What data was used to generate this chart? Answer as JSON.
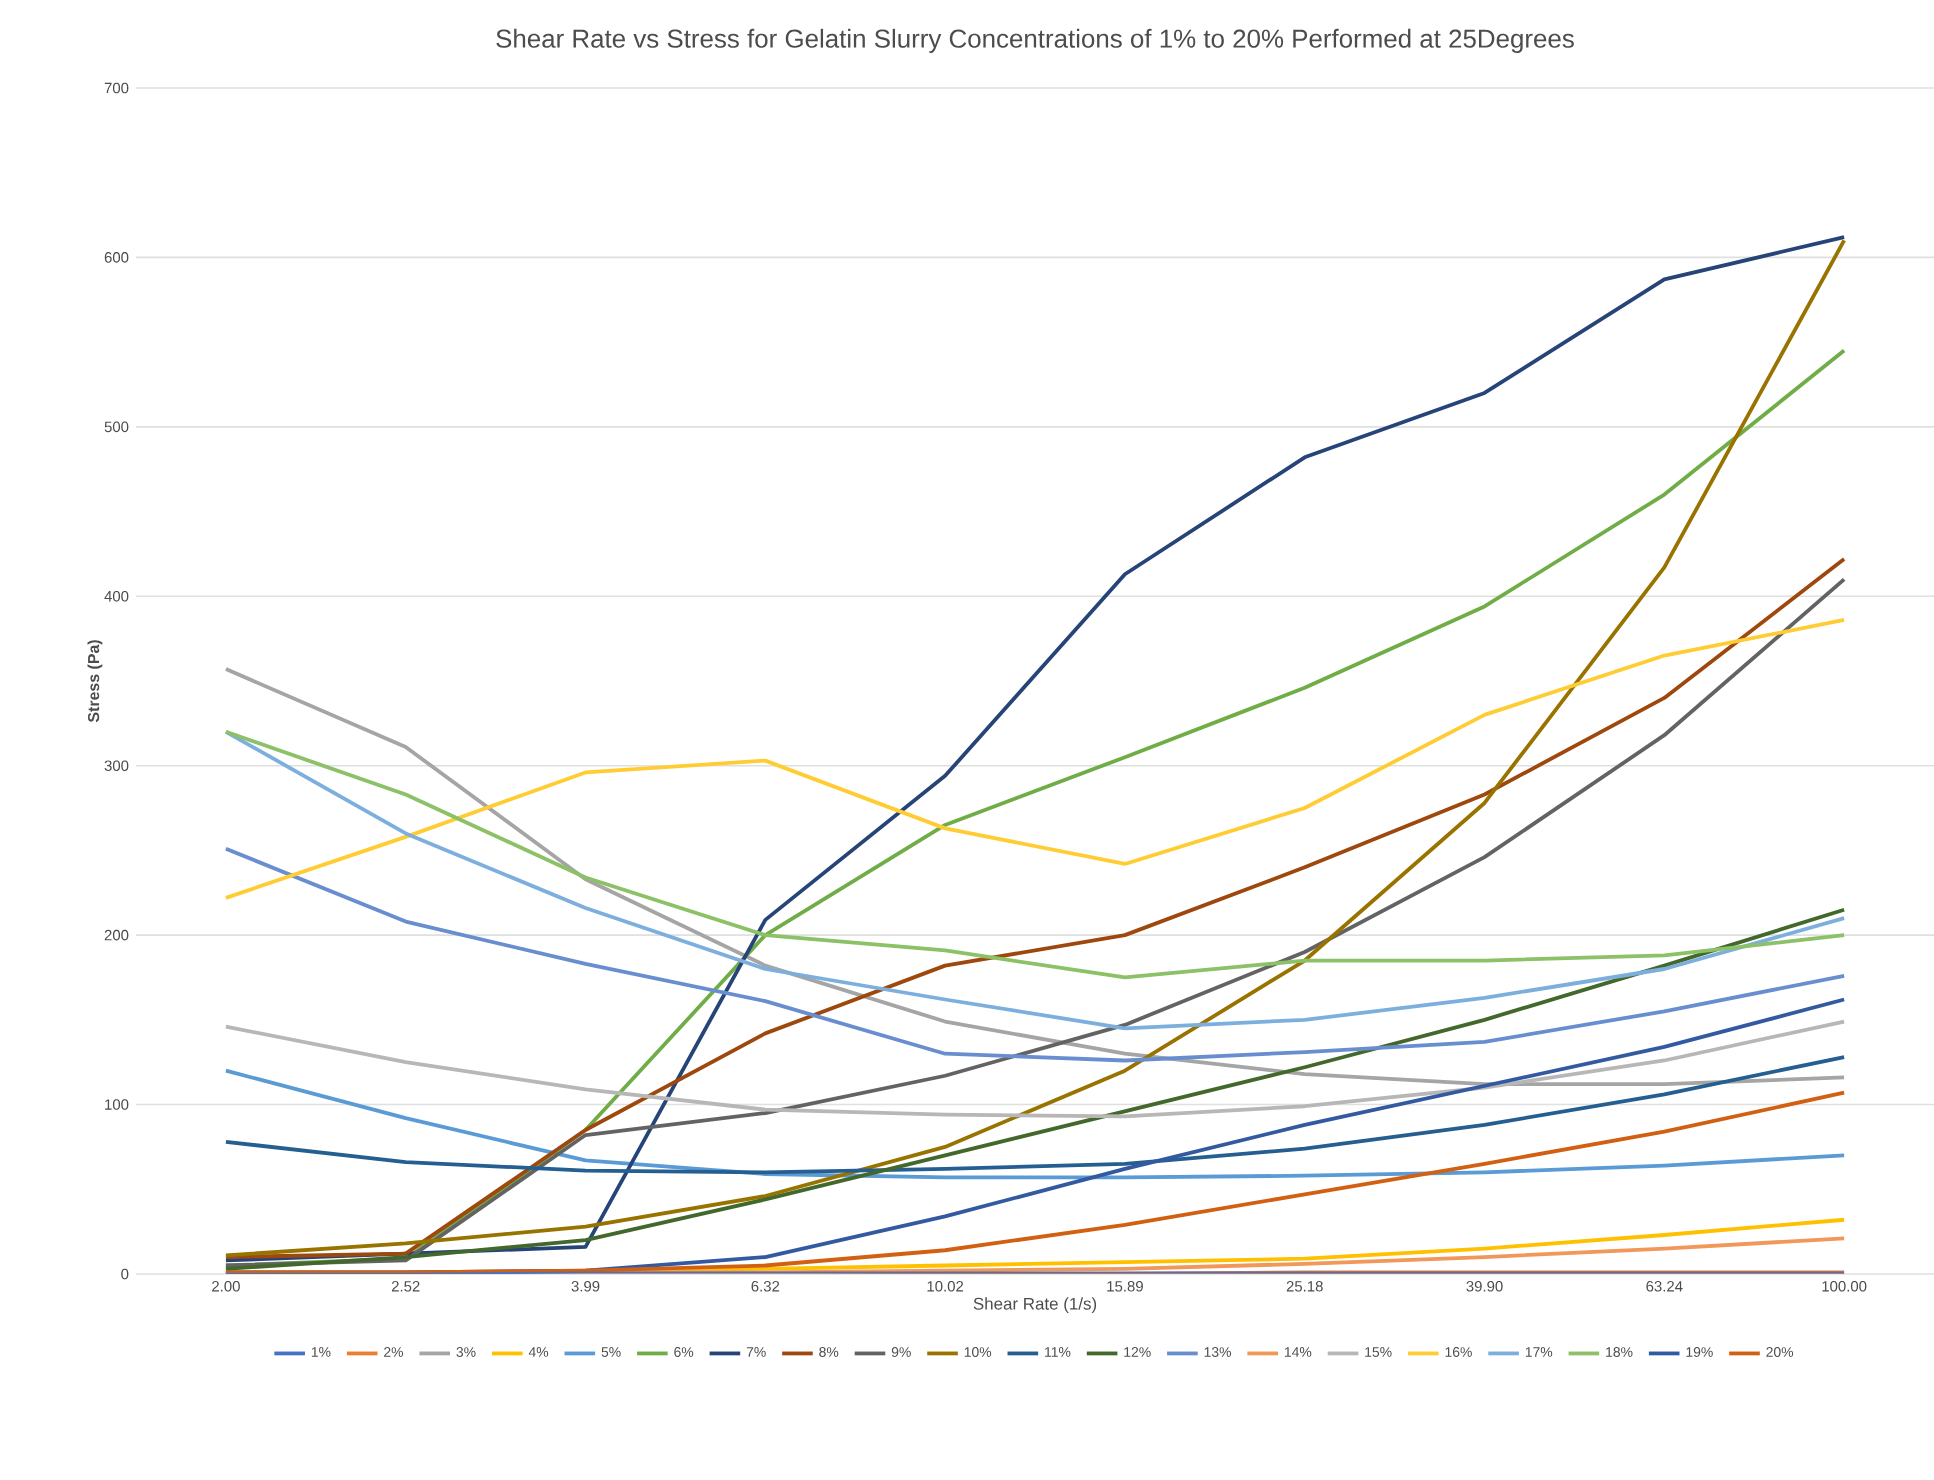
{
  "chart_data": {
    "type": "line",
    "title": "Shear Rate vs Stress for Gelatin Slurry Concentrations of 1% to 20% Performed at 25Degrees",
    "xlabel": "Shear Rate (1/s)",
    "ylabel": "Stress (Pa)",
    "categories": [
      "2.00",
      "2.52",
      "3.99",
      "6.32",
      "10.02",
      "15.89",
      "25.18",
      "39.90",
      "63.24",
      "100.00"
    ],
    "ylim": [
      0,
      700
    ],
    "yticks": [
      0,
      100,
      200,
      300,
      400,
      500,
      600,
      700
    ],
    "grid": "y",
    "legend": "bottom",
    "marker": "none",
    "line_style": "solid",
    "series": [
      {
        "name": "1%",
        "color": "#4472c4",
        "values": [
          0,
          0,
          1,
          1,
          1,
          1,
          1,
          1,
          1,
          1
        ]
      },
      {
        "name": "2%",
        "color": "#ed7d31",
        "values": [
          0,
          0,
          0,
          0,
          0,
          0,
          1,
          1,
          1,
          1
        ]
      },
      {
        "name": "3%",
        "color": "#a5a5a5",
        "values": [
          357,
          311,
          233,
          182,
          149,
          130,
          118,
          112,
          112,
          116
        ]
      },
      {
        "name": "4%",
        "color": "#ffc000",
        "values": [
          1,
          1,
          2,
          3,
          5,
          7,
          9,
          15,
          23,
          32
        ]
      },
      {
        "name": "5%",
        "color": "#5b9bd5",
        "values": [
          120,
          92,
          67,
          59,
          57,
          57,
          58,
          60,
          64,
          70
        ]
      },
      {
        "name": "6%",
        "color": "#70ad47",
        "values": [
          5,
          9,
          85,
          200,
          265,
          305,
          346,
          394,
          460,
          545
        ]
      },
      {
        "name": "7%",
        "color": "#264478",
        "values": [
          8,
          12,
          16,
          209,
          294,
          413,
          482,
          520,
          587,
          612
        ]
      },
      {
        "name": "8%",
        "color": "#9e480e",
        "values": [
          10,
          12,
          85,
          142,
          182,
          200,
          240,
          283,
          340,
          422
        ]
      },
      {
        "name": "9%",
        "color": "#636363",
        "values": [
          5,
          8,
          82,
          95,
          117,
          147,
          190,
          246,
          318,
          410
        ]
      },
      {
        "name": "10%",
        "color": "#997300",
        "values": [
          11,
          18,
          28,
          46,
          75,
          120,
          185,
          278,
          417,
          610
        ]
      },
      {
        "name": "11%",
        "color": "#255e91",
        "values": [
          78,
          66,
          61,
          60,
          62,
          65,
          74,
          88,
          106,
          128
        ]
      },
      {
        "name": "12%",
        "color": "#43682b",
        "values": [
          3,
          10,
          20,
          44,
          70,
          96,
          122,
          150,
          182,
          215
        ]
      },
      {
        "name": "13%",
        "color": "#698ed0",
        "values": [
          251,
          208,
          183,
          161,
          130,
          126,
          131,
          137,
          155,
          176
        ]
      },
      {
        "name": "14%",
        "color": "#f1975a",
        "values": [
          0,
          0,
          1,
          1,
          2,
          3,
          6,
          10,
          15,
          21
        ]
      },
      {
        "name": "15%",
        "color": "#b7b7b7",
        "values": [
          146,
          125,
          109,
          97,
          94,
          93,
          99,
          110,
          126,
          149
        ]
      },
      {
        "name": "16%",
        "color": "#ffcd33",
        "values": [
          222,
          258,
          296,
          303,
          263,
          242,
          275,
          330,
          365,
          386
        ]
      },
      {
        "name": "17%",
        "color": "#7cafdd",
        "values": [
          320,
          260,
          216,
          180,
          162,
          145,
          150,
          163,
          180,
          210
        ]
      },
      {
        "name": "18%",
        "color": "#8cc168",
        "values": [
          320,
          283,
          234,
          200,
          191,
          175,
          185,
          185,
          188,
          200
        ]
      },
      {
        "name": "19%",
        "color": "#335aa1",
        "values": [
          1,
          1,
          2,
          10,
          34,
          62,
          88,
          111,
          134,
          162
        ]
      },
      {
        "name": "20%",
        "color": "#d26012",
        "values": [
          1,
          1,
          2,
          5,
          14,
          29,
          47,
          65,
          84,
          107
        ]
      }
    ]
  }
}
